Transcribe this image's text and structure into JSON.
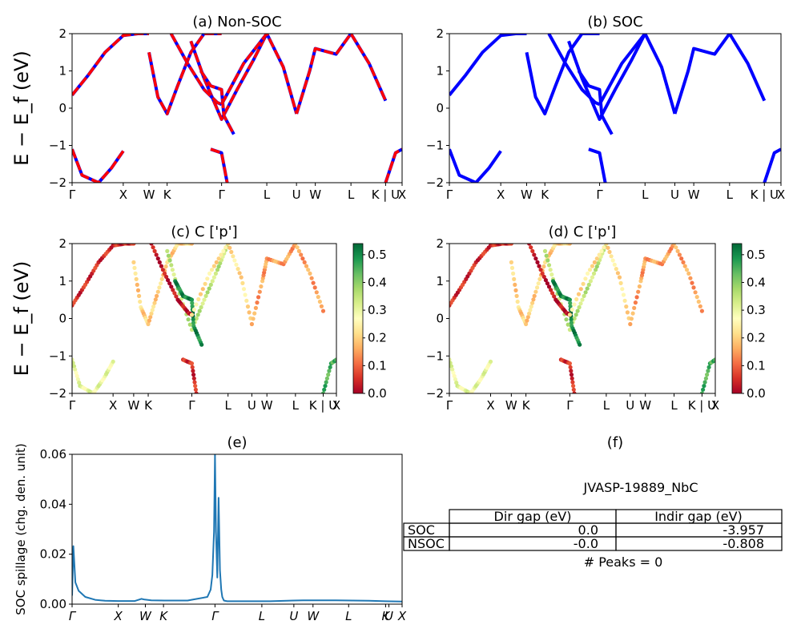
{
  "figure": {
    "id": "JVASP-19889_NbC"
  },
  "colors": {
    "nonsoc_a": "#0000ff",
    "nonsoc_b": "#ff0000",
    "soc": "#0000ff",
    "spillage": "#1f77b4",
    "colormap": "RdYlGn"
  },
  "chart_data": [
    {
      "type": "line",
      "title": "(a) Non-SOC",
      "ylabel": "E − E_f (eV)",
      "ylim": [
        -2,
        2
      ],
      "yticks": [
        "2",
        "1",
        "0",
        "−1",
        "−2"
      ],
      "kpath": [
        "Γ",
        "X",
        "W",
        "K",
        "Γ",
        "L",
        "U",
        "W",
        "L",
        "K | U",
        "X"
      ],
      "kpos": [
        0,
        0.155,
        0.233,
        0.288,
        0.453,
        0.59,
        0.68,
        0.737,
        0.845,
        0.95,
        1.0
      ],
      "style": "red dashed over blue",
      "bands": [
        {
          "x": [
            0,
            0.05,
            0.1,
            0.155,
            0.2,
            0.233
          ],
          "y": [
            0.35,
            0.9,
            1.5,
            1.95,
            2,
            2
          ]
        },
        {
          "x": [
            0,
            0.03,
            0.08,
            0.12,
            0.155
          ],
          "y": [
            -1.1,
            -1.8,
            -2,
            -1.6,
            -1.15
          ]
        },
        {
          "x": [
            0.233,
            0.26,
            0.288,
            0.32,
            0.36,
            0.4,
            0.453
          ],
          "y": [
            1.5,
            0.3,
            -0.15,
            0.6,
            1.5,
            2,
            2
          ]
        },
        {
          "x": [
            0.36,
            0.4,
            0.453,
            0.5,
            0.55,
            0.59
          ],
          "y": [
            1.8,
            0.8,
            -0.3,
            0.5,
            1.3,
            2
          ]
        },
        {
          "x": [
            0.39,
            0.42,
            0.453,
            0.46,
            0.49
          ],
          "y": [
            1,
            0.6,
            0.5,
            -0.2,
            -0.7
          ]
        },
        {
          "x": [
            0.3,
            0.35,
            0.4,
            0.44,
            0.453
          ],
          "y": [
            2,
            1.2,
            0.5,
            0.15,
            0.1
          ]
        },
        {
          "x": [
            0.453,
            0.52,
            0.59,
            0.64,
            0.68
          ],
          "y": [
            0.1,
            1.2,
            2,
            1.1,
            -0.15
          ]
        },
        {
          "x": [
            0.68,
            0.72,
            0.737,
            0.8,
            0.845,
            0.9,
            0.95
          ],
          "y": [
            -0.15,
            1,
            1.6,
            1.45,
            2,
            1.2,
            0.2
          ]
        },
        {
          "x": [
            0.42,
            0.453,
            0.47
          ],
          "y": [
            -1.1,
            -1.2,
            -2
          ]
        },
        {
          "x": [
            0.95,
            0.98,
            1.0
          ],
          "y": [
            -2,
            -1.2,
            -1.1
          ]
        }
      ]
    },
    {
      "type": "line",
      "title": "(b) SOC",
      "ylim": [
        -2,
        2
      ],
      "yticks": [
        "2",
        "1",
        "0",
        "−1",
        "−2"
      ],
      "kpath": [
        "Γ",
        "X",
        "W",
        "K",
        "Γ",
        "L",
        "U",
        "W",
        "L",
        "K | U",
        "X"
      ],
      "kpos": [
        0,
        0.155,
        0.233,
        0.288,
        0.453,
        0.59,
        0.68,
        0.737,
        0.845,
        0.95,
        1.0
      ],
      "style": "solid blue thick",
      "bands": [
        {
          "x": [
            0,
            0.05,
            0.1,
            0.155,
            0.2,
            0.233
          ],
          "y": [
            0.35,
            0.9,
            1.5,
            1.95,
            2,
            2
          ]
        },
        {
          "x": [
            0,
            0.03,
            0.08,
            0.12,
            0.155
          ],
          "y": [
            -1.1,
            -1.8,
            -2,
            -1.6,
            -1.15
          ]
        },
        {
          "x": [
            0.233,
            0.26,
            0.288,
            0.32,
            0.36,
            0.4,
            0.453
          ],
          "y": [
            1.5,
            0.3,
            -0.15,
            0.6,
            1.5,
            2,
            2
          ]
        },
        {
          "x": [
            0.36,
            0.4,
            0.453,
            0.5,
            0.55,
            0.59
          ],
          "y": [
            1.8,
            0.8,
            -0.3,
            0.5,
            1.3,
            2
          ]
        },
        {
          "x": [
            0.39,
            0.42,
            0.453,
            0.46,
            0.49
          ],
          "y": [
            1,
            0.6,
            0.5,
            -0.2,
            -0.7
          ]
        },
        {
          "x": [
            0.3,
            0.35,
            0.4,
            0.44,
            0.453
          ],
          "y": [
            2,
            1.2,
            0.5,
            0.15,
            0.1
          ]
        },
        {
          "x": [
            0.453,
            0.52,
            0.59,
            0.64,
            0.68
          ],
          "y": [
            0.1,
            1.2,
            2,
            1.1,
            -0.15
          ]
        },
        {
          "x": [
            0.68,
            0.72,
            0.737,
            0.8,
            0.845,
            0.9,
            0.95
          ],
          "y": [
            -0.15,
            1,
            1.6,
            1.45,
            2,
            1.2,
            0.2
          ]
        },
        {
          "x": [
            0.42,
            0.453,
            0.47
          ],
          "y": [
            -1.1,
            -1.2,
            -2
          ]
        },
        {
          "x": [
            0.95,
            0.98,
            1.0
          ],
          "y": [
            -2,
            -1.2,
            -1.1
          ]
        }
      ]
    },
    {
      "type": "scatter",
      "title": "(c)  C ['p']",
      "ylabel": "E − E_f (eV)",
      "ylim": [
        -2,
        2
      ],
      "yticks": [
        "2",
        "1",
        "0",
        "−1",
        "−2"
      ],
      "kpath": [
        "Γ",
        "X",
        "W",
        "K",
        "Γ",
        "L",
        "U",
        "W",
        "L",
        "K | U",
        "X"
      ],
      "kpos": [
        0,
        0.155,
        0.233,
        0.288,
        0.453,
        0.59,
        0.68,
        0.737,
        0.845,
        0.95,
        1.0
      ],
      "colorbar": {
        "range": [
          0,
          0.54
        ],
        "ticks": [
          "0.5",
          "0.4",
          "0.3",
          "0.2",
          "0.1",
          "0.0"
        ]
      },
      "bands": [
        {
          "x": [
            0,
            0.05,
            0.1,
            0.155,
            0.2,
            0.233
          ],
          "y": [
            0.35,
            0.9,
            1.5,
            1.95,
            2,
            2
          ],
          "w": 0.05
        },
        {
          "x": [
            0,
            0.03,
            0.08,
            0.12,
            0.155
          ],
          "y": [
            -1.1,
            -1.8,
            -2,
            -1.6,
            -1.15
          ],
          "w": 0.3
        },
        {
          "x": [
            0.233,
            0.26,
            0.288,
            0.32,
            0.36,
            0.4,
            0.453
          ],
          "y": [
            1.5,
            0.3,
            -0.15,
            0.6,
            1.5,
            2,
            2
          ],
          "w": 0.2
        },
        {
          "x": [
            0.36,
            0.4,
            0.453,
            0.5,
            0.55,
            0.59
          ],
          "y": [
            1.8,
            0.8,
            -0.3,
            0.5,
            1.3,
            2
          ],
          "w": 0.35
        },
        {
          "x": [
            0.39,
            0.42,
            0.453,
            0.46,
            0.49
          ],
          "y": [
            1,
            0.6,
            0.5,
            -0.2,
            -0.7
          ],
          "w": 0.5
        },
        {
          "x": [
            0.3,
            0.35,
            0.4,
            0.44,
            0.453
          ],
          "y": [
            2,
            1.2,
            0.5,
            0.15,
            0.1
          ],
          "w": 0.02
        },
        {
          "x": [
            0.453,
            0.52,
            0.59,
            0.64,
            0.68
          ],
          "y": [
            0.1,
            1.2,
            2,
            1.1,
            -0.15
          ],
          "w": 0.22
        },
        {
          "x": [
            0.68,
            0.72,
            0.737,
            0.8,
            0.845,
            0.9,
            0.95
          ],
          "y": [
            -0.15,
            1,
            1.6,
            1.45,
            2,
            1.2,
            0.2
          ],
          "w": 0.15
        },
        {
          "x": [
            0.42,
            0.453,
            0.47
          ],
          "y": [
            -1.1,
            -1.2,
            -2
          ],
          "w": 0.05
        },
        {
          "x": [
            0.95,
            0.98,
            1.0
          ],
          "y": [
            -2,
            -1.2,
            -1.1
          ],
          "w": 0.45
        }
      ]
    },
    {
      "type": "scatter",
      "title": "(d) C ['p']",
      "ylim": [
        -2,
        2
      ],
      "yticks": [
        "2",
        "1",
        "0",
        "−1",
        "−2"
      ],
      "kpath": [
        "Γ",
        "X",
        "W",
        "K",
        "Γ",
        "L",
        "U",
        "W",
        "L",
        "K | U",
        "X"
      ],
      "kpos": [
        0,
        0.155,
        0.233,
        0.288,
        0.453,
        0.59,
        0.68,
        0.737,
        0.845,
        0.95,
        1.0
      ],
      "colorbar": {
        "range": [
          0,
          0.54
        ],
        "ticks": [
          "0.5",
          "0.4",
          "0.3",
          "0.2",
          "0.1",
          "0.0"
        ]
      },
      "bands": [
        {
          "x": [
            0,
            0.05,
            0.1,
            0.155,
            0.2,
            0.233
          ],
          "y": [
            0.35,
            0.9,
            1.5,
            1.95,
            2,
            2
          ],
          "w": 0.05
        },
        {
          "x": [
            0,
            0.03,
            0.08,
            0.12,
            0.155
          ],
          "y": [
            -1.1,
            -1.8,
            -2,
            -1.6,
            -1.15
          ],
          "w": 0.3
        },
        {
          "x": [
            0.233,
            0.26,
            0.288,
            0.32,
            0.36,
            0.4,
            0.453
          ],
          "y": [
            1.5,
            0.3,
            -0.15,
            0.6,
            1.5,
            2,
            2
          ],
          "w": 0.2
        },
        {
          "x": [
            0.36,
            0.4,
            0.453,
            0.5,
            0.55,
            0.59
          ],
          "y": [
            1.8,
            0.8,
            -0.3,
            0.5,
            1.3,
            2
          ],
          "w": 0.35
        },
        {
          "x": [
            0.39,
            0.42,
            0.453,
            0.46,
            0.49
          ],
          "y": [
            1,
            0.6,
            0.5,
            -0.2,
            -0.7
          ],
          "w": 0.5
        },
        {
          "x": [
            0.3,
            0.35,
            0.4,
            0.44,
            0.453
          ],
          "y": [
            2,
            1.2,
            0.5,
            0.15,
            0.1
          ],
          "w": 0.02
        },
        {
          "x": [
            0.453,
            0.52,
            0.59,
            0.64,
            0.68
          ],
          "y": [
            0.1,
            1.2,
            2,
            1.1,
            -0.15
          ],
          "w": 0.22
        },
        {
          "x": [
            0.68,
            0.72,
            0.737,
            0.8,
            0.845,
            0.9,
            0.95
          ],
          "y": [
            -0.15,
            1,
            1.6,
            1.45,
            2,
            1.2,
            0.2
          ],
          "w": 0.15
        },
        {
          "x": [
            0.42,
            0.453,
            0.47
          ],
          "y": [
            -1.1,
            -1.2,
            -2
          ],
          "w": 0.05
        },
        {
          "x": [
            0.95,
            0.98,
            1.0
          ],
          "y": [
            -2,
            -1.2,
            -1.1
          ],
          "w": 0.45
        }
      ]
    },
    {
      "type": "line",
      "title": "(e)",
      "ylabel": "SOC spillage (chg. den. unit)",
      "ylim": [
        0,
        0.062
      ],
      "yticks": [
        "0.06",
        "0.04",
        "0.02",
        "0.00"
      ],
      "kpath": [
        "Γ",
        "X",
        "W",
        "K",
        "Γ",
        "L",
        "U",
        "W",
        "L",
        "K",
        "U",
        "X"
      ],
      "kpos": [
        0,
        0.14,
        0.222,
        0.277,
        0.433,
        0.575,
        0.672,
        0.73,
        0.838,
        0.95,
        0.96,
        1.0
      ],
      "x": [
        0,
        0.004,
        0.01,
        0.02,
        0.04,
        0.07,
        0.1,
        0.14,
        0.19,
        0.21,
        0.22,
        0.24,
        0.28,
        0.35,
        0.37,
        0.41,
        0.42,
        0.425,
        0.43,
        0.433,
        0.436,
        0.44,
        0.444,
        0.448,
        0.452,
        0.455,
        0.46,
        0.47,
        0.5,
        0.6,
        0.67,
        0.7,
        0.8,
        0.9,
        0.95,
        1.0
      ],
      "y": [
        0.0035,
        0.024,
        0.009,
        0.0055,
        0.003,
        0.0018,
        0.0014,
        0.0013,
        0.0013,
        0.0022,
        0.0019,
        0.0016,
        0.0015,
        0.0015,
        0.002,
        0.003,
        0.006,
        0.012,
        0.03,
        0.062,
        0.03,
        0.011,
        0.044,
        0.014,
        0.006,
        0.003,
        0.0015,
        0.0012,
        0.0012,
        0.0012,
        0.0015,
        0.0016,
        0.0016,
        0.0014,
        0.0012,
        0.0011
      ]
    }
  ],
  "panel_f": {
    "title": "(f)",
    "material": "JVASP-19889_NbC",
    "table": {
      "headers": [
        "",
        "Dir gap (eV)",
        "Indir gap (eV)"
      ],
      "rows": [
        {
          "label": "SOC",
          "dir": "0.0",
          "indir": "-3.957"
        },
        {
          "label": "NSOC",
          "dir": "-0.0",
          "indir": "-0.808"
        }
      ]
    },
    "peaks": "# Peaks = 0"
  }
}
